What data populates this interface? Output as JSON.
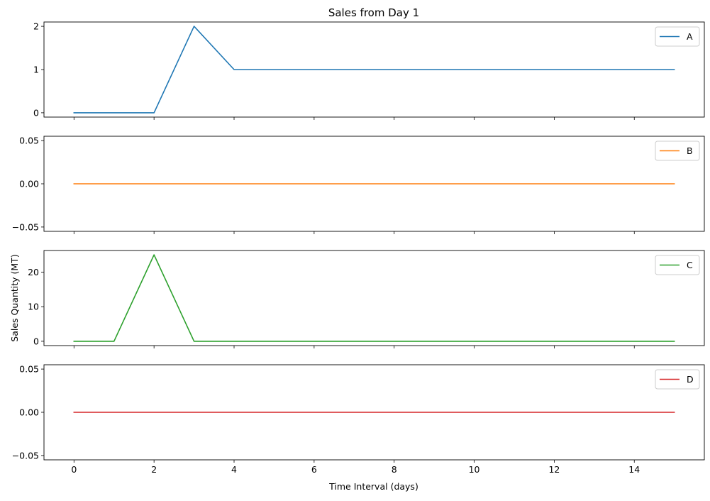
{
  "chart_data": {
    "type": "line",
    "title": "Sales from Day 1",
    "xlabel": "Time Interval (days)",
    "ylabel": "Sales Quantity (MT)",
    "shared_x": true,
    "x": [
      0,
      1,
      2,
      3,
      4,
      5,
      6,
      7,
      8,
      9,
      10,
      11,
      12,
      13,
      14,
      15
    ],
    "xlim": [
      -0.75,
      15.75
    ],
    "xticks": [
      0,
      2,
      4,
      6,
      8,
      10,
      12,
      14
    ],
    "grid": false,
    "legend_position": "upper right",
    "panels": [
      {
        "series": [
          {
            "name": "A",
            "color": "#1f77b4",
            "values": [
              0,
              0,
              0,
              2,
              1,
              1,
              1,
              1,
              1,
              1,
              1,
              1,
              1,
              1,
              1,
              1
            ]
          }
        ],
        "ylim": [
          -0.1,
          2.1
        ],
        "yticks": [
          0,
          1,
          2
        ],
        "ytick_labels": [
          "0",
          "1",
          "2"
        ]
      },
      {
        "series": [
          {
            "name": "B",
            "color": "#ff7f0e",
            "values": [
              0,
              0,
              0,
              0,
              0,
              0,
              0,
              0,
              0,
              0,
              0,
              0,
              0,
              0,
              0,
              0
            ]
          }
        ],
        "ylim": [
          -0.055,
          0.055
        ],
        "yticks": [
          -0.05,
          0,
          0.05
        ],
        "ytick_labels": [
          "−0.05",
          "0.00",
          "0.05"
        ]
      },
      {
        "series": [
          {
            "name": "C",
            "color": "#2ca02c",
            "values": [
              0,
              0,
              25,
              0,
              0,
              0,
              0,
              0,
              0,
              0,
              0,
              0,
              0,
              0,
              0,
              0
            ]
          }
        ],
        "ylim": [
          -1.25,
          26.25
        ],
        "yticks": [
          0,
          10,
          20
        ],
        "ytick_labels": [
          "0",
          "10",
          "20"
        ]
      },
      {
        "series": [
          {
            "name": "D",
            "color": "#d62728",
            "values": [
              0,
              0,
              0,
              0,
              0,
              0,
              0,
              0,
              0,
              0,
              0,
              0,
              0,
              0,
              0,
              0
            ]
          }
        ],
        "ylim": [
          -0.055,
          0.055
        ],
        "yticks": [
          -0.05,
          0,
          0.05
        ],
        "ytick_labels": [
          "−0.05",
          "0.00",
          "0.05"
        ]
      }
    ]
  }
}
